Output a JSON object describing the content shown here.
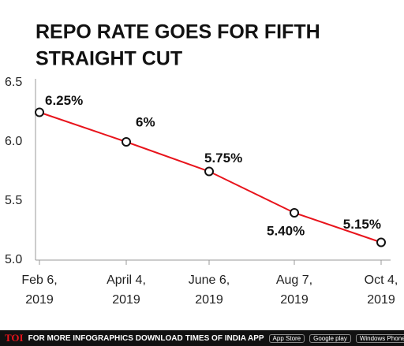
{
  "chart_data": {
    "type": "line",
    "title_lines": [
      "REPO RATE GOES FOR FIFTH",
      "STRAIGHT CUT"
    ],
    "categories": [
      "Feb 6, 2019",
      "April 4, 2019",
      "June 6, 2019",
      "Aug 7, 2019",
      "Oct 4, 2019"
    ],
    "series": [
      {
        "name": "Repo rate",
        "color": "#e8141c",
        "values": [
          6.25,
          6,
          5.75,
          5.4,
          5.15
        ],
        "value_labels": [
          "6.25%",
          "6%",
          "5.75%",
          "5.40%",
          "5.15%"
        ]
      }
    ],
    "ylim": [
      5,
      6.5
    ],
    "yticks": [
      {
        "value": 5,
        "label": "5.0"
      },
      5.5,
      {
        "value": 6,
        "label": "6.0"
      },
      6.5
    ]
  },
  "footer": {
    "brand": "TOI",
    "text": "FOR MORE INFOGRAPHICS DOWNLOAD",
    "app": "TIMES OF INDIA APP",
    "badges": [
      "App Store",
      "Google play",
      "Windows Phone"
    ]
  }
}
